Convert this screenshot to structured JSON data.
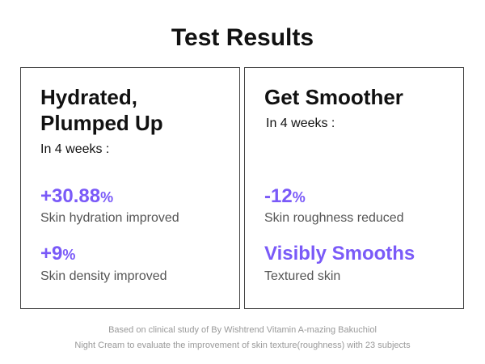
{
  "title": "Test Results",
  "accent_color": "#7a5af8",
  "cards": [
    {
      "heading_line1": "Hydrated,",
      "heading_line2": "Plumped Up",
      "period": "In 4 weeks :",
      "results": [
        {
          "value": "+30.88",
          "unit": "%",
          "label": "Skin hydration improved"
        },
        {
          "value": "+9",
          "unit": "%",
          "label": "Skin density improved"
        }
      ]
    },
    {
      "heading_line1": "Get Smoother",
      "period": "In 4 weeks :",
      "results": [
        {
          "value": "-12",
          "unit": "%",
          "label": "Skin roughness reduced"
        },
        {
          "value": "Visibly Smooths",
          "label": "Textured skin"
        }
      ]
    }
  ],
  "footnote_line1": "Based on clinical study of By Wishtrend Vitamin A-mazing Bakuchiol",
  "footnote_line2": "Night Cream to evaluate the improvement of skin texture(roughness) with 23 subjects"
}
